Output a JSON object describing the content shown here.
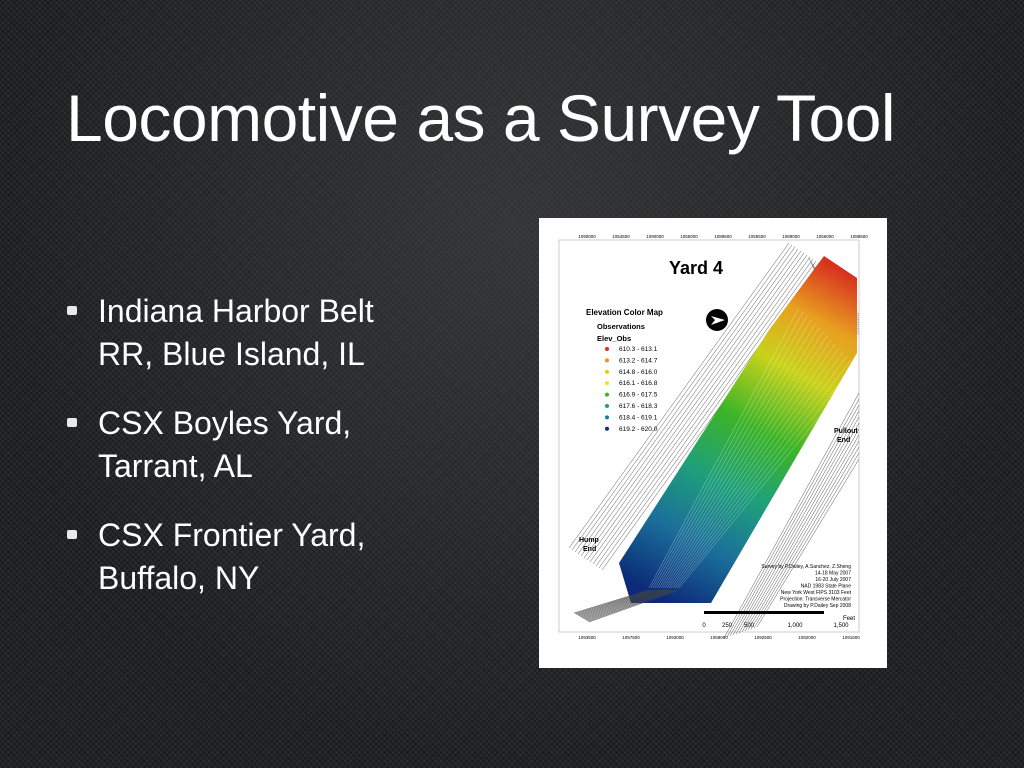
{
  "slide": {
    "title": "Locomotive as a Survey Tool",
    "bullets": [
      {
        "lines": [
          "Indiana Harbor Belt",
          "RR, Blue Island, IL"
        ]
      },
      {
        "lines": [
          "CSX Boyles Yard,",
          "Tarrant, AL"
        ]
      },
      {
        "lines": [
          "CSX Frontier Yard,",
          "Buffalo, NY"
        ]
      }
    ],
    "map": {
      "title": "Yard 4",
      "legend_title": "Elevation Color Map",
      "legend_subtitle": "Observations",
      "legend_field": "Elev_Obs",
      "legend": [
        {
          "label": "610.3 - 613.1",
          "color": "#d7301f"
        },
        {
          "label": "613.2 - 614.7",
          "color": "#f08a24"
        },
        {
          "label": "614.8 - 616.0",
          "color": "#f5c400"
        },
        {
          "label": "616.1 - 616.8",
          "color": "#e6e61a"
        },
        {
          "label": "616.9 - 617.5",
          "color": "#3cb428"
        },
        {
          "label": "617.6 - 618.3",
          "color": "#1fa07a"
        },
        {
          "label": "618.4 - 619.1",
          "color": "#1b7a9c"
        },
        {
          "label": "619.2 - 620.0",
          "color": "#0c2a78"
        }
      ],
      "pullout_label": [
        "Pullout",
        "End"
      ],
      "hump_label": [
        "Hump",
        "End"
      ],
      "credits": [
        "Survey by P.Dailey, A.Sanchez, Z.Sheng",
        "14-18 May 2007",
        "16-20 July 2007",
        "NAD 1983 State Plane",
        "New York West FIPS 3103 Feet",
        "Projection: Transverse Mercator",
        "Drawing by P.Dailey Sep 2008"
      ],
      "scale_labels": [
        "0",
        "250",
        "500",
        "1,000",
        "1,500"
      ],
      "scale_unit": "Feet",
      "top_coords": [
        "1090000",
        "1054500",
        "1090000",
        "1055000",
        "1089500",
        "1055500",
        "1089000",
        "1056000",
        "1088500"
      ],
      "bottom_coords": [
        "1093500",
        "1057500",
        "1093000",
        "1058000",
        "1092500",
        "1092000",
        "1091500"
      ]
    }
  }
}
